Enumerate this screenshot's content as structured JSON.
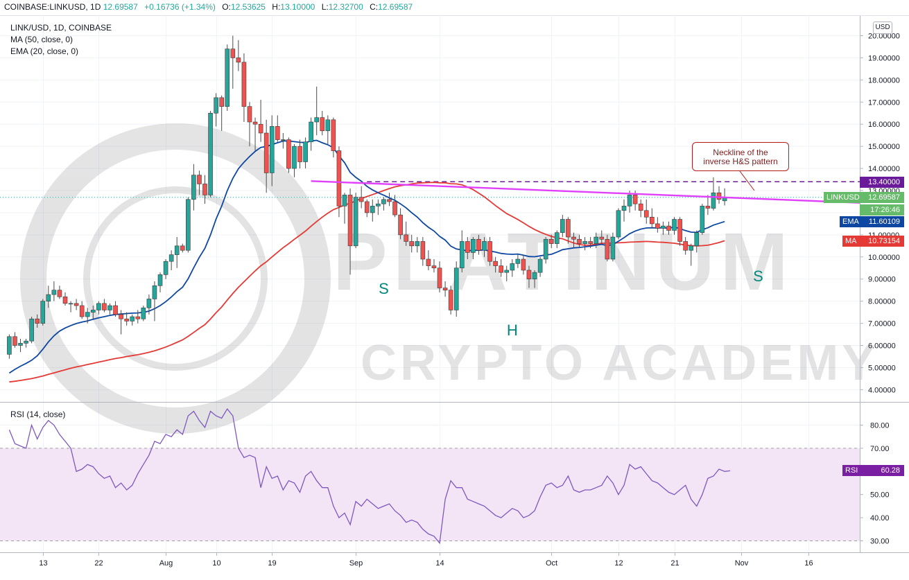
{
  "header": {
    "symbol": "COINBASE:LINKUSD, 1D",
    "last": "12.69587",
    "change": "+0.16736 (+1.34%)",
    "o_label": "O:",
    "o": "12.53625",
    "h_label": "H:",
    "h": "13.10000",
    "l_label": "L:",
    "l": "12.32700",
    "c_label": "C:",
    "c": "12.69587"
  },
  "legend": {
    "pair": "LINK/USD, 1D, COINBASE",
    "ma": "MA (50, close, 0)",
    "ema": "EMA (20, close, 0)",
    "rsi": "RSI (14, close)"
  },
  "currency": "USD",
  "annotation": {
    "line1": "Neckline of the",
    "line2": "inverse H&S pattern"
  },
  "pattern_labels": [
    "S",
    "H",
    "S"
  ],
  "watermark": {
    "line1": "PLATINUM",
    "line2": "CRYPTO ACADEMY"
  },
  "price_labels": {
    "resistance": "13.40000",
    "last_tag": "LINKUSD",
    "last": "12.69587",
    "countdown": "17:26:46",
    "ema_tag": "EMA",
    "ema": "11.60109",
    "ma_tag": "MA",
    "ma": "10.73154",
    "rsi_tag": "RSI",
    "rsi": "60.28"
  },
  "colors": {
    "up": "#26a69a",
    "down": "#ef5350",
    "ema": "#0d47a1",
    "ma": "#e53935",
    "neckline": "#e040fb",
    "resistance": "#6a1b9a",
    "rsi_line": "#7e57c2",
    "rsi_band": "#f3e5f5",
    "pattern_text": "#00897b",
    "last": "#4caf50"
  },
  "chart_data": [
    {
      "type": "candlestick",
      "y_ticks": [
        "4.00000",
        "5.00000",
        "6.00000",
        "7.00000",
        "8.00000",
        "9.00000",
        "10.00000",
        "11.00000",
        "12.00000",
        "13.00000",
        "14.00000",
        "15.00000",
        "16.00000",
        "17.00000",
        "18.00000",
        "19.00000",
        "20.00000"
      ],
      "x_ticks": [
        "13",
        "22",
        "Aug",
        "10",
        "19",
        "Sep",
        "14",
        "Oct",
        "12",
        "21",
        "Nov",
        "16"
      ],
      "ylim": [
        3.5,
        21
      ],
      "ohlc": [
        [
          5.6,
          6.5,
          5.4,
          6.4
        ],
        [
          6.4,
          6.6,
          5.9,
          6.0
        ],
        [
          6.0,
          6.3,
          5.7,
          6.1
        ],
        [
          6.1,
          6.3,
          5.9,
          6.2
        ],
        [
          6.2,
          7.3,
          6.1,
          7.2
        ],
        [
          7.2,
          7.4,
          6.8,
          7.0
        ],
        [
          7.0,
          8.1,
          6.9,
          8.0
        ],
        [
          8.0,
          8.7,
          7.7,
          8.3
        ],
        [
          8.3,
          8.9,
          8.0,
          8.5
        ],
        [
          8.5,
          8.7,
          8.1,
          8.2
        ],
        [
          8.2,
          8.4,
          7.8,
          7.9
        ],
        [
          7.9,
          8.0,
          7.5,
          7.9
        ],
        [
          7.9,
          8.1,
          7.6,
          7.8
        ],
        [
          7.8,
          8.0,
          7.2,
          7.3
        ],
        [
          7.3,
          7.7,
          7.0,
          7.5
        ],
        [
          7.5,
          7.8,
          7.2,
          7.6
        ],
        [
          7.6,
          8.0,
          7.4,
          7.9
        ],
        [
          7.9,
          8.1,
          7.5,
          7.6
        ],
        [
          7.6,
          7.9,
          7.4,
          7.8
        ],
        [
          7.8,
          8.0,
          7.3,
          7.4
        ],
        [
          7.4,
          7.6,
          6.5,
          7.2
        ],
        [
          7.2,
          7.5,
          6.9,
          7.1
        ],
        [
          7.1,
          7.4,
          6.9,
          7.3
        ],
        [
          7.3,
          7.6,
          7.0,
          7.2
        ],
        [
          7.2,
          7.8,
          7.1,
          7.7
        ],
        [
          7.7,
          8.3,
          7.4,
          8.1
        ],
        [
          8.1,
          8.9,
          7.1,
          8.7
        ],
        [
          8.7,
          9.3,
          8.4,
          9.2
        ],
        [
          9.2,
          9.9,
          9.0,
          9.8
        ],
        [
          9.8,
          10.3,
          9.4,
          10.1
        ],
        [
          10.1,
          10.9,
          9.5,
          10.5
        ],
        [
          10.5,
          10.6,
          10.2,
          10.3
        ],
        [
          10.3,
          12.7,
          10.2,
          12.6
        ],
        [
          12.6,
          14.2,
          12.1,
          13.7
        ],
        [
          13.7,
          13.9,
          12.8,
          13.3
        ],
        [
          13.3,
          13.7,
          12.4,
          12.8
        ],
        [
          12.8,
          16.6,
          12.7,
          16.5
        ],
        [
          16.5,
          17.4,
          15.9,
          17.2
        ],
        [
          17.2,
          17.3,
          15.7,
          16.8
        ],
        [
          16.8,
          19.6,
          16.6,
          19.4
        ],
        [
          19.4,
          20.0,
          17.6,
          19.0
        ],
        [
          19.0,
          19.8,
          18.4,
          18.8
        ],
        [
          18.8,
          19.2,
          16.1,
          16.8
        ],
        [
          16.8,
          17.0,
          15.0,
          16.1
        ],
        [
          16.1,
          16.3,
          14.8,
          16.0
        ],
        [
          16.0,
          17.1,
          15.2,
          15.6
        ],
        [
          15.6,
          16.2,
          12.9,
          13.8
        ],
        [
          13.8,
          16.4,
          13.2,
          15.9
        ],
        [
          15.9,
          16.4,
          15.2,
          15.3
        ],
        [
          15.3,
          15.6,
          14.9,
          15.3
        ],
        [
          15.3,
          15.4,
          13.8,
          14.0
        ],
        [
          14.0,
          15.1,
          13.6,
          15.0
        ],
        [
          15.0,
          15.3,
          14.0,
          14.3
        ],
        [
          14.3,
          15.4,
          14.0,
          15.2
        ],
        [
          15.2,
          16.3,
          14.8,
          16.1
        ],
        [
          16.1,
          17.7,
          15.5,
          16.3
        ],
        [
          16.3,
          16.6,
          15.5,
          15.7
        ],
        [
          15.7,
          16.4,
          15.1,
          16.2
        ],
        [
          16.2,
          16.3,
          14.5,
          14.8
        ],
        [
          14.8,
          15.0,
          11.8,
          12.3
        ],
        [
          12.3,
          12.9,
          11.5,
          12.8
        ],
        [
          12.8,
          13.1,
          9.2,
          10.5
        ],
        [
          10.5,
          12.9,
          10.4,
          12.7
        ],
        [
          12.7,
          13.2,
          12.2,
          12.5
        ],
        [
          12.5,
          12.6,
          11.8,
          12.0
        ],
        [
          12.0,
          12.6,
          11.6,
          12.3
        ],
        [
          12.3,
          12.6,
          11.9,
          12.4
        ],
        [
          12.4,
          12.7,
          12.1,
          12.6
        ],
        [
          12.6,
          12.9,
          12.3,
          12.5
        ],
        [
          12.5,
          12.8,
          11.8,
          11.9
        ],
        [
          11.9,
          12.2,
          10.8,
          11.0
        ],
        [
          11.0,
          11.6,
          10.5,
          10.7
        ],
        [
          10.7,
          11.0,
          10.2,
          10.5
        ],
        [
          10.5,
          10.9,
          10.2,
          10.7
        ],
        [
          10.7,
          10.9,
          9.6,
          9.9
        ],
        [
          9.9,
          10.3,
          9.4,
          9.6
        ],
        [
          9.6,
          9.9,
          9.3,
          9.5
        ],
        [
          9.5,
          9.8,
          8.4,
          8.6
        ],
        [
          8.6,
          8.9,
          8.2,
          8.5
        ],
        [
          8.5,
          8.7,
          7.4,
          7.6
        ],
        [
          7.6,
          9.8,
          7.3,
          9.5
        ],
        [
          9.5,
          11.2,
          9.3,
          10.7
        ],
        [
          10.7,
          10.9,
          9.9,
          10.2
        ],
        [
          10.2,
          10.9,
          9.9,
          10.8
        ],
        [
          10.8,
          11.0,
          10.1,
          10.3
        ],
        [
          10.3,
          10.9,
          10.0,
          10.7
        ],
        [
          10.7,
          10.9,
          9.6,
          9.8
        ],
        [
          9.8,
          10.0,
          9.3,
          9.6
        ],
        [
          9.6,
          9.9,
          9.1,
          9.3
        ],
        [
          9.3,
          9.6,
          8.9,
          9.4
        ],
        [
          9.4,
          9.9,
          9.1,
          9.7
        ],
        [
          9.7,
          10.1,
          9.5,
          9.9
        ],
        [
          9.9,
          10.1,
          9.2,
          9.4
        ],
        [
          9.4,
          9.6,
          8.6,
          9.0
        ],
        [
          9.0,
          9.4,
          8.6,
          9.3
        ],
        [
          9.3,
          10.0,
          9.1,
          9.9
        ],
        [
          9.9,
          10.9,
          9.7,
          10.8
        ],
        [
          10.8,
          11.0,
          10.4,
          10.6
        ],
        [
          10.6,
          11.2,
          10.4,
          11.1
        ],
        [
          11.1,
          11.9,
          10.9,
          11.7
        ],
        [
          11.7,
          11.8,
          10.6,
          10.9
        ],
        [
          10.9,
          11.1,
          10.4,
          10.8
        ],
        [
          10.8,
          11.0,
          10.4,
          10.6
        ],
        [
          10.6,
          10.9,
          10.3,
          10.7
        ],
        [
          10.7,
          10.9,
          10.4,
          10.6
        ],
        [
          10.6,
          11.1,
          10.4,
          10.9
        ],
        [
          10.9,
          11.2,
          10.6,
          10.8
        ],
        [
          10.8,
          11.0,
          9.8,
          9.9
        ],
        [
          9.9,
          11.1,
          9.8,
          10.9
        ],
        [
          10.9,
          12.2,
          10.8,
          12.1
        ],
        [
          12.1,
          12.6,
          11.6,
          12.3
        ],
        [
          12.3,
          13.0,
          12.0,
          12.8
        ],
        [
          12.8,
          13.0,
          12.1,
          12.4
        ],
        [
          12.4,
          12.6,
          11.8,
          12.1
        ],
        [
          12.1,
          12.6,
          11.5,
          11.8
        ],
        [
          11.8,
          12.2,
          11.3,
          11.5
        ],
        [
          11.5,
          11.8,
          11.1,
          11.3
        ],
        [
          11.3,
          11.6,
          11.0,
          11.4
        ],
        [
          11.4,
          11.6,
          11.0,
          11.2
        ],
        [
          11.2,
          11.8,
          11.0,
          11.7
        ],
        [
          11.7,
          11.8,
          10.5,
          10.7
        ],
        [
          10.7,
          10.9,
          10.1,
          10.3
        ],
        [
          10.3,
          10.6,
          9.6,
          10.5
        ],
        [
          10.5,
          11.2,
          10.2,
          11.1
        ],
        [
          11.1,
          12.4,
          11.0,
          12.3
        ],
        [
          12.3,
          12.8,
          11.9,
          12.2
        ],
        [
          12.2,
          13.6,
          12.1,
          12.9
        ],
        [
          12.9,
          13.2,
          12.4,
          12.6
        ],
        [
          12.53625,
          13.1,
          12.327,
          12.69587
        ]
      ],
      "ema20": [
        4.75,
        4.92,
        5.06,
        5.19,
        5.33,
        5.53,
        5.83,
        6.16,
        6.44,
        6.65,
        6.79,
        6.9,
        6.99,
        7.06,
        7.11,
        7.18,
        7.25,
        7.3,
        7.36,
        7.4,
        7.42,
        7.44,
        7.46,
        7.47,
        7.5,
        7.55,
        7.66,
        7.8,
        7.98,
        8.19,
        8.43,
        8.63,
        9.01,
        9.51,
        9.98,
        10.39,
        11.0,
        11.71,
        12.3,
        12.99,
        13.55,
        13.99,
        14.28,
        14.54,
        14.77,
        14.95,
        14.99,
        15.08,
        15.16,
        15.24,
        15.24,
        15.21,
        15.18,
        15.17,
        15.24,
        15.27,
        15.16,
        15.07,
        14.93,
        14.57,
        14.26,
        13.82,
        13.6,
        13.42,
        13.19,
        13.03,
        12.9,
        12.79,
        12.67,
        12.56,
        12.4,
        12.22,
        12.0,
        11.8,
        11.55,
        11.34,
        11.17,
        10.93,
        10.76,
        10.49,
        10.36,
        10.32,
        10.28,
        10.3,
        10.3,
        10.32,
        10.27,
        10.22,
        10.16,
        10.13,
        10.12,
        10.13,
        10.08,
        10.02,
        10.01,
        10.05,
        10.09,
        10.12,
        10.22,
        10.33,
        10.37,
        10.41,
        10.43,
        10.46,
        10.49,
        10.53,
        10.57,
        10.51,
        10.56,
        10.71,
        10.87,
        11.05,
        11.17,
        11.26,
        11.31,
        11.32,
        11.31,
        11.32,
        11.3,
        11.35,
        11.28,
        11.19,
        11.12,
        11.11,
        11.23,
        11.32,
        11.44,
        11.52,
        11.60109
      ],
      "ma50": [
        4.35,
        4.38,
        4.42,
        4.46,
        4.5,
        4.56,
        4.62,
        4.69,
        4.76,
        4.83,
        4.9,
        4.97,
        5.03,
        5.08,
        5.14,
        5.19,
        5.25,
        5.3,
        5.36,
        5.41,
        5.45,
        5.5,
        5.54,
        5.58,
        5.63,
        5.69,
        5.76,
        5.84,
        5.93,
        6.03,
        6.14,
        6.25,
        6.41,
        6.59,
        6.77,
        6.94,
        7.2,
        7.48,
        7.74,
        8.05,
        8.35,
        8.63,
        8.88,
        9.13,
        9.37,
        9.6,
        9.78,
        10.0,
        10.21,
        10.42,
        10.6,
        10.8,
        10.98,
        11.17,
        11.39,
        11.6,
        11.8,
        11.98,
        12.14,
        12.24,
        12.35,
        12.43,
        12.53,
        12.64,
        12.73,
        12.82,
        12.91,
        13.0,
        13.09,
        13.17,
        13.22,
        13.26,
        13.3,
        13.34,
        13.35,
        13.36,
        13.37,
        13.35,
        13.35,
        13.31,
        13.3,
        13.26,
        13.16,
        13.04,
        12.88,
        12.72,
        12.52,
        12.32,
        12.14,
        11.96,
        11.83,
        11.69,
        11.54,
        11.38,
        11.24,
        11.12,
        11.02,
        10.93,
        10.86,
        10.82,
        10.72,
        10.63,
        10.56,
        10.53,
        10.54,
        10.58,
        10.62,
        10.62,
        10.63,
        10.64,
        10.65,
        10.67,
        10.68,
        10.69,
        10.7,
        10.69,
        10.67,
        10.66,
        10.64,
        10.62,
        10.58,
        10.54,
        10.51,
        10.5,
        10.51,
        10.53,
        10.59,
        10.65,
        10.73154
      ],
      "neckline": {
        "from": [
          54,
          13.43
        ],
        "to": [
          132,
          12.65
        ]
      },
      "resistance": 13.4
    },
    {
      "type": "line",
      "title": "RSI (14, close)",
      "y_ticks": [
        "30.00",
        "40.00",
        "50.00",
        "60.00",
        "70.00",
        "80.00"
      ],
      "ylim": [
        25,
        90
      ],
      "band": [
        30,
        70
      ],
      "values": [
        78,
        72,
        71,
        70,
        80,
        74,
        79,
        82,
        80,
        76,
        73,
        70,
        60,
        61,
        63,
        62,
        59,
        57,
        58,
        53,
        55,
        52,
        54,
        59,
        63,
        67,
        73,
        72,
        76,
        75,
        78,
        76,
        84,
        86,
        82,
        79,
        86,
        84,
        83,
        87,
        84,
        70,
        66,
        67,
        66,
        53,
        62,
        57,
        58,
        52,
        56,
        55,
        51,
        58,
        60,
        56,
        53,
        53,
        45,
        40,
        42,
        37,
        47,
        45,
        48,
        46,
        44,
        45,
        46,
        43,
        41,
        38,
        39,
        38,
        35,
        33,
        32,
        29,
        48,
        56,
        53,
        53,
        48,
        47,
        46,
        45,
        43,
        41,
        40,
        42,
        44,
        43,
        40,
        41,
        43,
        49,
        54,
        55,
        53,
        54,
        58,
        52,
        51,
        52,
        52,
        53,
        54,
        58,
        55,
        50,
        54,
        63,
        61,
        62,
        59,
        56,
        55,
        53,
        51,
        50,
        52,
        54,
        48,
        45,
        50,
        57,
        58,
        61,
        60,
        60.28
      ]
    }
  ]
}
